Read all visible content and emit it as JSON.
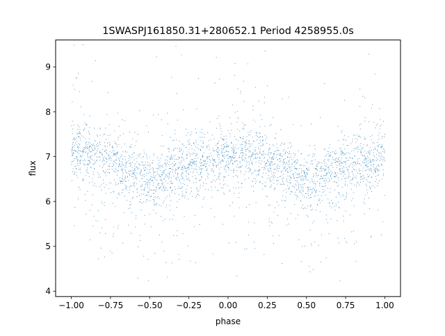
{
  "chart_data": {
    "type": "scatter",
    "title": "1SWASPJ161850.31+280652.1 Period 4258955.0s",
    "xlabel": "phase",
    "ylabel": "flux",
    "xlim": [
      -1.1,
      1.1
    ],
    "ylim": [
      3.88,
      9.6
    ],
    "x_ticks": [
      -1.0,
      -0.75,
      -0.5,
      -0.25,
      0.0,
      0.25,
      0.5,
      0.75,
      1.0
    ],
    "x_tick_labels": [
      "−1.00",
      "−0.75",
      "−0.50",
      "−0.25",
      "0.00",
      "0.25",
      "0.50",
      "0.75",
      "1.00"
    ],
    "y_ticks": [
      4,
      5,
      6,
      7,
      8,
      9
    ],
    "y_tick_labels": [
      "4",
      "5",
      "6",
      "7",
      "8",
      "9"
    ],
    "grid": false,
    "point_color": "#1f77b4",
    "series": [
      {
        "profile_phase": [
          -1.0,
          -0.9,
          -0.8,
          -0.7,
          -0.6,
          -0.5,
          -0.4,
          -0.3,
          -0.2,
          -0.1,
          0.0,
          0.1,
          0.2,
          0.3,
          0.4,
          0.5,
          0.6,
          0.7,
          0.8,
          0.9,
          1.0
        ],
        "profile_flux": [
          7.1,
          7.05,
          6.95,
          6.85,
          6.65,
          6.4,
          6.55,
          6.7,
          6.8,
          6.9,
          7.0,
          7.05,
          6.95,
          6.85,
          6.65,
          6.4,
          6.55,
          6.7,
          6.8,
          6.9,
          7.05
        ],
        "scatter_sigma": 0.35,
        "flux_range": [
          4.15,
          9.5
        ]
      }
    ]
  }
}
